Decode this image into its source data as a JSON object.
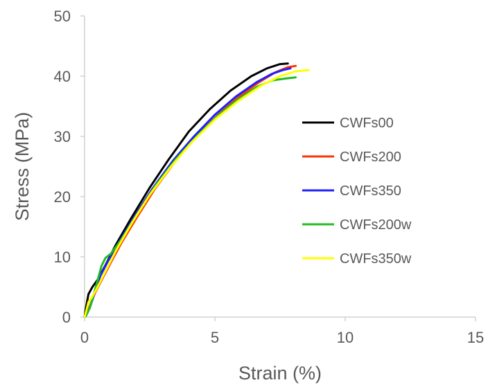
{
  "chart_data": {
    "type": "line",
    "title": "",
    "xlabel": "Strain (%)",
    "ylabel": "Stress (MPa)",
    "xlim": [
      0,
      15
    ],
    "ylim": [
      0,
      50
    ],
    "xticks": [
      "0",
      "5",
      "10",
      "15"
    ],
    "yticks": [
      "0",
      "10",
      "20",
      "30",
      "40",
      "50"
    ],
    "grid": false,
    "legend_position": "right",
    "series": [
      {
        "name": "CWFs00",
        "color": "#000000",
        "x": [
          0.05,
          0.15,
          0.3,
          0.5,
          0.8,
          1.2,
          1.8,
          2.5,
          3.2,
          4.0,
          4.8,
          5.6,
          6.4,
          7.0,
          7.5,
          7.8
        ],
        "y": [
          1.5,
          3.8,
          5.0,
          6.2,
          8.6,
          12.0,
          16.5,
          21.5,
          26.0,
          30.8,
          34.5,
          37.6,
          40.0,
          41.3,
          42.0,
          42.1
        ]
      },
      {
        "name": "CWFs200",
        "color": "#FF3300",
        "x": [
          0.05,
          0.2,
          0.4,
          0.7,
          1.0,
          1.4,
          2.0,
          2.7,
          3.5,
          4.3,
          5.1,
          5.9,
          6.7,
          7.3,
          7.8,
          8.1
        ],
        "y": [
          0.3,
          1.8,
          4.0,
          6.5,
          9.0,
          12.2,
          16.5,
          21.3,
          26.0,
          30.0,
          33.5,
          36.5,
          39.0,
          40.6,
          41.5,
          41.7
        ]
      },
      {
        "name": "CWFs350",
        "color": "#1F1FFF",
        "x": [
          0.05,
          0.2,
          0.4,
          0.6,
          0.9,
          1.3,
          1.9,
          2.6,
          3.4,
          4.2,
          5.0,
          5.8,
          6.6,
          7.2,
          7.6,
          7.9
        ],
        "y": [
          0.2,
          1.5,
          4.2,
          6.8,
          9.3,
          12.3,
          16.6,
          21.3,
          26.0,
          30.0,
          33.6,
          36.6,
          39.0,
          40.4,
          41.0,
          41.3
        ]
      },
      {
        "name": "CWFs200w",
        "color": "#22BB22",
        "x": [
          0.05,
          0.2,
          0.4,
          0.65,
          0.8,
          1.0,
          1.4,
          2.0,
          2.7,
          3.5,
          4.3,
          5.1,
          5.9,
          6.6,
          7.2,
          7.7,
          8.1
        ],
        "y": [
          0.2,
          1.5,
          4.5,
          8.5,
          9.8,
          10.5,
          12.8,
          17.0,
          21.7,
          26.2,
          30.0,
          33.4,
          36.2,
          38.2,
          39.3,
          39.6,
          39.8
        ]
      },
      {
        "name": "CWFs350w",
        "color": "#FFFF00",
        "x": [
          0.05,
          0.15,
          0.3,
          0.5,
          0.8,
          1.2,
          1.8,
          2.5,
          3.3,
          4.1,
          5.0,
          5.9,
          6.8,
          7.5,
          8.1,
          8.6
        ],
        "y": [
          0.8,
          2.5,
          3.4,
          5.0,
          7.6,
          11.0,
          15.5,
          20.3,
          24.9,
          29.0,
          32.8,
          35.9,
          38.5,
          40.0,
          40.8,
          41.0
        ]
      }
    ]
  }
}
